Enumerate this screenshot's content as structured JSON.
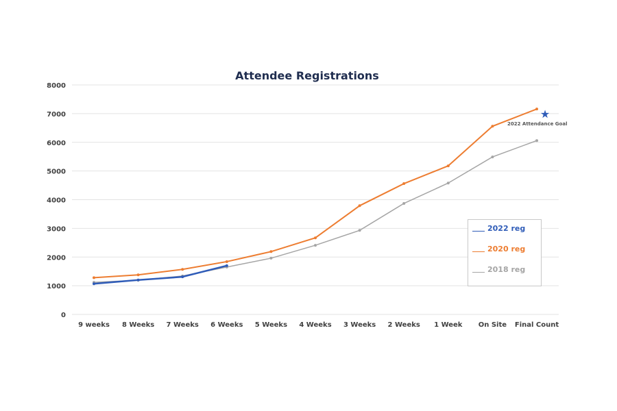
{
  "chart_data": {
    "type": "line",
    "title": "Attendee Registrations",
    "categories": [
      "9 weeks",
      "8 Weeks",
      "7 Weeks",
      "6 Weeks",
      "5 Weeks",
      "4 Weeks",
      "3 Weeks",
      "2 Weeks",
      "1 Week",
      "On Site",
      "Final Count"
    ],
    "ylim": [
      0,
      8000
    ],
    "yticks": [
      0,
      1000,
      2000,
      3000,
      4000,
      5000,
      6000,
      7000,
      8000
    ],
    "grid": true,
    "legend_position": "right",
    "series": [
      {
        "name": "2022 reg",
        "color": "#2f5cb8",
        "values": [
          1070,
          1200,
          1310,
          1700,
          null,
          null,
          null,
          null,
          null,
          null,
          null
        ]
      },
      {
        "name": "2020 reg",
        "color": "#ed7d31",
        "values": [
          1280,
          1380,
          1570,
          1840,
          2190,
          2670,
          3790,
          4560,
          5180,
          6560,
          7160
        ]
      },
      {
        "name": "2018 reg",
        "color": "#a5a5a5",
        "values": [
          1120,
          1190,
          1340,
          1650,
          1960,
          2410,
          2930,
          3870,
          4580,
          5490,
          6060
        ]
      }
    ],
    "annotation": {
      "label": "2022 Attendance Goal",
      "value": 7000,
      "marker": "star-icon",
      "color": "#2f5cb8"
    }
  }
}
